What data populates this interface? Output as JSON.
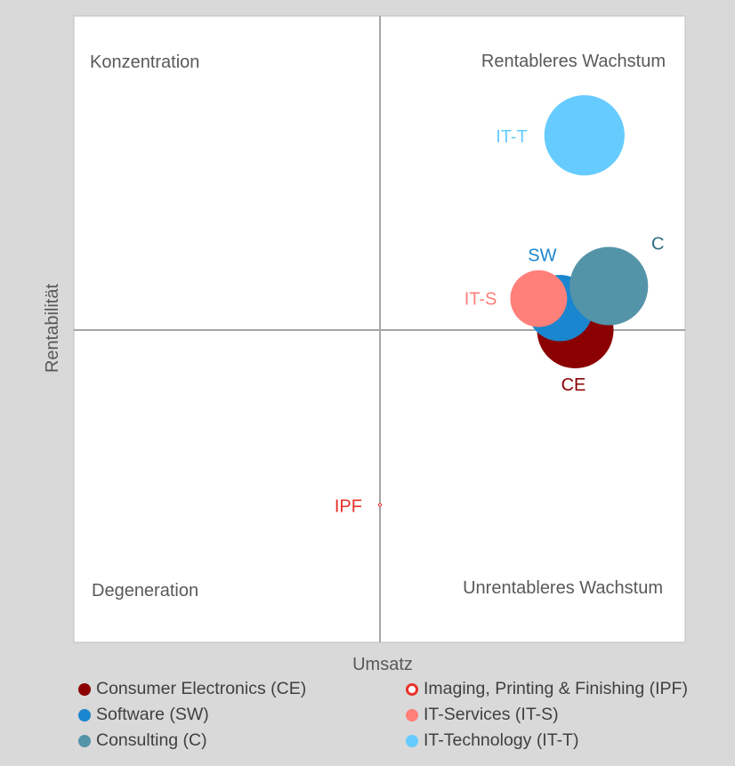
{
  "chart_data": {
    "type": "bubble",
    "xlabel": "Umsatz",
    "ylabel": "Rentabilität",
    "xlim": [
      -1,
      1
    ],
    "ylim": [
      -1,
      1
    ],
    "x_axis_crosses_y_at": 0,
    "y_axis_crosses_x_at": 0,
    "quadrant_labels": {
      "top_left": "Konzentration",
      "top_right": "Rentableres Wachstum",
      "bottom_left": "Degeneration",
      "bottom_right": "Unrentableres Wachstum"
    },
    "legend_position": "bottom",
    "series": [
      {
        "name": "Consumer Electronics (CE)",
        "label": "CE",
        "x": 0.64,
        "y": 0.0,
        "size": 1.0,
        "color": "#8b0000",
        "label_color": "#8b0000",
        "hollow": false
      },
      {
        "name": "Imaging, Printing & Finishing (IPF)",
        "label": "IPF",
        "x": 0.0,
        "y": -0.56,
        "size": 0.0,
        "color": "#e8322a",
        "label_color": "#e8322a",
        "hollow": true
      },
      {
        "name": "Software (SW)",
        "label": "SW",
        "x": 0.59,
        "y": 0.07,
        "size": 0.75,
        "color": "#1a86cf",
        "label_color": "#1a86cf",
        "hollow": false
      },
      {
        "name": "IT-Services (IT-S)",
        "label": "IT-S",
        "x": 0.52,
        "y": 0.1,
        "size": 0.55,
        "color": "#ff7f79",
        "label_color": "#ff7f79",
        "hollow": false
      },
      {
        "name": "Consulting (C)",
        "label": "C",
        "x": 0.75,
        "y": 0.14,
        "size": 1.05,
        "color": "#5494a9",
        "label_color": "#2e6b83",
        "hollow": false
      },
      {
        "name": "IT-Technology (IT-T)",
        "label": "IT-T",
        "x": 0.67,
        "y": 0.62,
        "size": 1.1,
        "color": "#66ccff",
        "label_color": "#66ccff",
        "hollow": false
      }
    ]
  },
  "legend": {
    "items": [
      {
        "label": "Consumer Electronics (CE)",
        "color": "#8b0000",
        "hollow": false
      },
      {
        "label": "Imaging, Printing & Finishing (IPF)",
        "color": "#e8322a",
        "hollow": true
      },
      {
        "label": "Software (SW)",
        "color": "#1a86cf",
        "hollow": false
      },
      {
        "label": "IT-Services (IT-S)",
        "color": "#ff7f79",
        "hollow": false
      },
      {
        "label": "Consulting (C)",
        "color": "#5494a9",
        "hollow": false
      },
      {
        "label": "IT-Technology (IT-T)",
        "color": "#66ccff",
        "hollow": false
      }
    ]
  },
  "colors": {
    "background": "#d9d9d9",
    "plot_area": "#ffffff",
    "axis": "#a6a6a6",
    "text": "#595959"
  }
}
